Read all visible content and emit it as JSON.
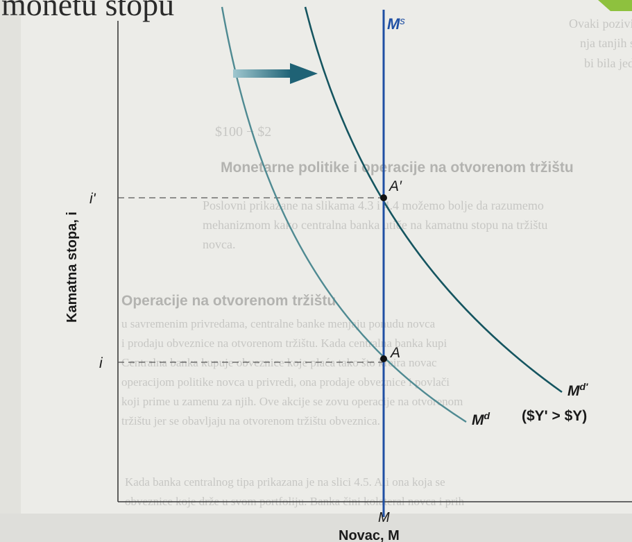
{
  "cropped_heading": "monetu stopu",
  "background_text": {
    "top_paragraph": [
      "Ovaki pozivitna poteze stope od vrane tanje lo nalaze",
      "nja tanjih stope. Cinjenica kamatne stope poveceli tanije",
      "bi bila jednaka sada vecoj potraznje novca."
    ],
    "equation": "$100 − $2",
    "heading_1": "Monetarne politike i operacije na otvorenom tržištu",
    "middle_paragraph": [
      "Poslovni prikazane na slikama 4.3 i 4.4 možemo bolje da razumemo",
      "mehanizmom kako centralna banka utiče na kamatnu stopu na tržištu",
      "novca."
    ],
    "heading_2": "Operacije na otvorenom tržištu",
    "lower_paragraph": [
      "u savremenim privredama, centralne banke menjaju ponudu novca",
      "i prodaju obveznice na otvorenom tržištu. Kada centralna banka kupi",
      "Centralna banka kupuje obveznice koje plaća tako što kreira novac",
      "operacijom politike novca u privredi, ona prodaje obveznice i povlači",
      "koji prime u zamenu za njih. Ove akcije se zovu operacije na otvorenom",
      "tržištu jer se obavljaju na otvorenom tržištu obveznica."
    ],
    "bottom_paragraph": [
      "Kada banka centralnog tipa prikazana je na slici 4.5. Ali ona koja se",
      "obveznice koje drže u svom portfoliju. Banka čini kolateral novca i prih"
    ]
  },
  "chart_data": {
    "type": "line",
    "title": "",
    "xlabel": "Novac, M",
    "ylabel": "Kamatna stopa, i",
    "x_ticks": [
      "M"
    ],
    "y_ticks": [
      "i'",
      "i"
    ],
    "series": [
      {
        "name": "Ms",
        "kind": "vertical supply line",
        "x_label": "M"
      },
      {
        "name": "Md",
        "kind": "demand curve"
      },
      {
        "name": "Md'",
        "kind": "shifted demand curve"
      }
    ],
    "points": [
      {
        "label": "A",
        "at": [
          "M",
          "i"
        ]
      },
      {
        "label": "A'",
        "at": [
          "M",
          "i'"
        ]
      }
    ],
    "annotations": [
      "($Y' > $Y)"
    ],
    "shift_direction": "right",
    "colors": {
      "supply": "#1f4fa3",
      "demand": "#4f8a92",
      "demand_shifted": "#155560",
      "arrow": "#2c6f7f",
      "axes": "#3a3a3a",
      "point": "#111111",
      "accent_tab": "#8ec13e"
    }
  }
}
